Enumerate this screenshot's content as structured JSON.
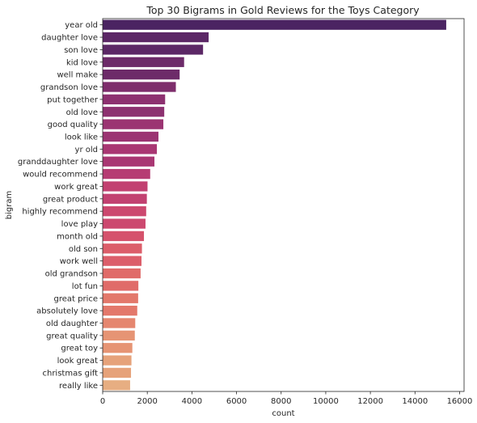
{
  "chart_data": {
    "type": "bar",
    "orientation": "horizontal",
    "title": "Top 30 Bigrams in Gold Reviews for the Toys Category",
    "xlabel": "count",
    "ylabel": "bigram",
    "xlim": [
      0,
      16200
    ],
    "xticks": [
      0,
      2000,
      4000,
      6000,
      8000,
      10000,
      12000,
      14000,
      16000
    ],
    "grid": false,
    "palette": "flare (dark purple to light orange)",
    "colors": [
      "#4b2462",
      "#5c2866",
      "#6d2b69",
      "#7e2e6c",
      "#8d3170",
      "#9b3472",
      "#a93773",
      "#b63c73",
      "#c24171",
      "#cc486f",
      "#d5526c",
      "#dc5e6a",
      "#e06b69",
      "#e3786b",
      "#e5866f",
      "#e69474",
      "#e6a27a",
      "#e7ae82"
    ],
    "categories": [
      "year old",
      "daughter love",
      "son love",
      "kid love",
      "well make",
      "grandson love",
      "put together",
      "old love",
      "good quality",
      "look like",
      "yr old",
      "granddaughter love",
      "would recommend",
      "work great",
      "great product",
      "highly recommend",
      "love play",
      "month old",
      "old son",
      "work well",
      "old grandson",
      "lot fun",
      "great price",
      "absolutely love",
      "old daughter",
      "great quality",
      "great toy",
      "look great",
      "christmas gift",
      "really like"
    ],
    "values": [
      15400,
      4750,
      4500,
      3650,
      3450,
      3280,
      2800,
      2760,
      2720,
      2500,
      2430,
      2320,
      2130,
      2010,
      1980,
      1950,
      1920,
      1850,
      1760,
      1740,
      1700,
      1600,
      1590,
      1550,
      1460,
      1440,
      1330,
      1290,
      1270,
      1230
    ]
  }
}
